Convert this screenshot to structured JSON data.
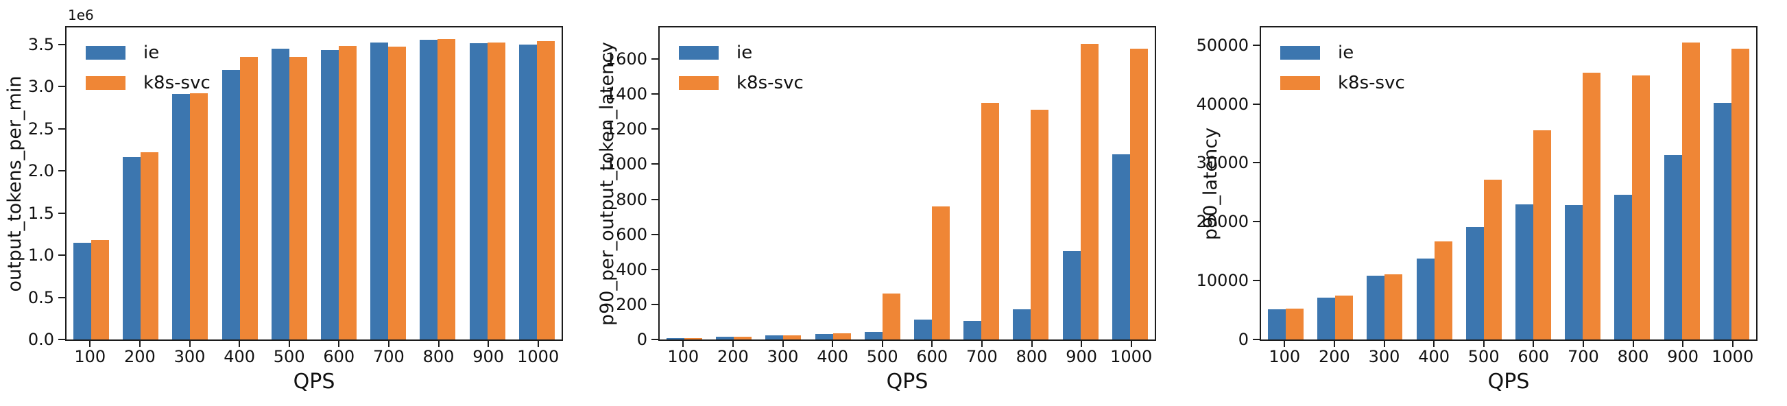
{
  "figure": {
    "background": "#ffffff",
    "axis_color": "#1c1c1c",
    "series_colors": {
      "ie": "#3C76AF",
      "k8s-svc": "#EF8636"
    }
  },
  "chart_data": [
    {
      "type": "bar",
      "title": "",
      "xlabel": "QPS",
      "ylabel": "output_tokens_per_min",
      "offset_text": "1e6",
      "legend_position": "upper left",
      "grid": false,
      "categories": [
        "100",
        "200",
        "300",
        "400",
        "500",
        "600",
        "700",
        "800",
        "900",
        "1000"
      ],
      "series": [
        {
          "name": "ie",
          "color": "#3C76AF",
          "values": [
            1150000,
            2160000,
            2910000,
            3200000,
            3450000,
            3430000,
            3520000,
            3550000,
            3510000,
            3500000
          ]
        },
        {
          "name": "k8s-svc",
          "color": "#EF8636",
          "values": [
            1180000,
            2220000,
            2920000,
            3350000,
            3350000,
            3480000,
            3470000,
            3560000,
            3520000,
            3540000
          ]
        }
      ],
      "ylim": [
        0,
        3700000
      ],
      "yticks": [
        0,
        500000,
        1000000,
        1500000,
        2000000,
        2500000,
        3000000,
        3500000
      ],
      "ytick_labels": [
        "0.0",
        "0.5",
        "1.0",
        "1.5",
        "2.0",
        "2.5",
        "3.0",
        "3.5"
      ]
    },
    {
      "type": "bar",
      "title": "",
      "xlabel": "QPS",
      "ylabel": "p90_per_output_token_latency",
      "offset_text": "",
      "legend_position": "upper left",
      "grid": false,
      "categories": [
        "100",
        "200",
        "300",
        "400",
        "500",
        "600",
        "700",
        "800",
        "900",
        "1000"
      ],
      "series": [
        {
          "name": "ie",
          "color": "#3C76AF",
          "values": [
            8,
            15,
            22,
            32,
            45,
            112,
            104,
            173,
            505,
            1056
          ]
        },
        {
          "name": "k8s-svc",
          "color": "#EF8636",
          "values": [
            8,
            15,
            22,
            36,
            262,
            760,
            1350,
            1310,
            1686,
            1658
          ]
        }
      ],
      "ylim": [
        0,
        1780
      ],
      "yticks": [
        0,
        200,
        400,
        600,
        800,
        1000,
        1200,
        1400,
        1600
      ],
      "ytick_labels": [
        "0",
        "200",
        "400",
        "600",
        "800",
        "1000",
        "1200",
        "1400",
        "1600"
      ]
    },
    {
      "type": "bar",
      "title": "",
      "xlabel": "QPS",
      "ylabel": "p90_latency",
      "offset_text": "",
      "legend_position": "upper left",
      "grid": false,
      "categories": [
        "100",
        "200",
        "300",
        "400",
        "500",
        "600",
        "700",
        "800",
        "900",
        "1000"
      ],
      "series": [
        {
          "name": "ie",
          "color": "#3C76AF",
          "values": [
            5100,
            7100,
            10800,
            13800,
            19100,
            23000,
            22800,
            24600,
            31300,
            40200
          ]
        },
        {
          "name": "k8s-svc",
          "color": "#EF8636",
          "values": [
            5300,
            7400,
            11100,
            16700,
            27100,
            35500,
            45300,
            44900,
            50400,
            49400
          ]
        }
      ],
      "ylim": [
        0,
        53000
      ],
      "yticks": [
        0,
        10000,
        20000,
        30000,
        40000,
        50000
      ],
      "ytick_labels": [
        "0",
        "10000",
        "20000",
        "30000",
        "40000",
        "50000"
      ]
    }
  ]
}
